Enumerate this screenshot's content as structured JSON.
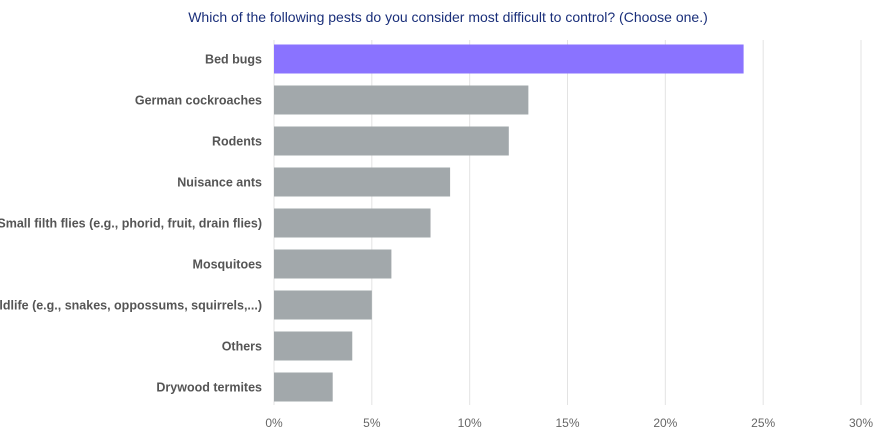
{
  "chart_data": {
    "type": "bar",
    "orientation": "horizontal",
    "title": "Which of the following pests do you consider most difficult to control? (Choose one.)",
    "categories": [
      "Bed bugs",
      "German cockroaches",
      "Rodents",
      "Nuisance ants",
      "Small filth flies (e.g., phorid, fruit, drain flies)",
      "Mosquitoes",
      "Wildlife (e.g., snakes, oppossums, squirrels,...)",
      "Others",
      "Drywood termites"
    ],
    "values": [
      24,
      13,
      12,
      9,
      8,
      6,
      5,
      4,
      3
    ],
    "unit": "%",
    "xlim": [
      0,
      30
    ],
    "xticks": [
      "0%",
      "5%",
      "10%",
      "15%",
      "20%",
      "25%",
      "30%"
    ],
    "grid": true,
    "colors": {
      "highlight": "#8a73ff",
      "default": "#a2a8ab",
      "grid": "#e3e3e3",
      "title": "#1a2f7a"
    }
  }
}
